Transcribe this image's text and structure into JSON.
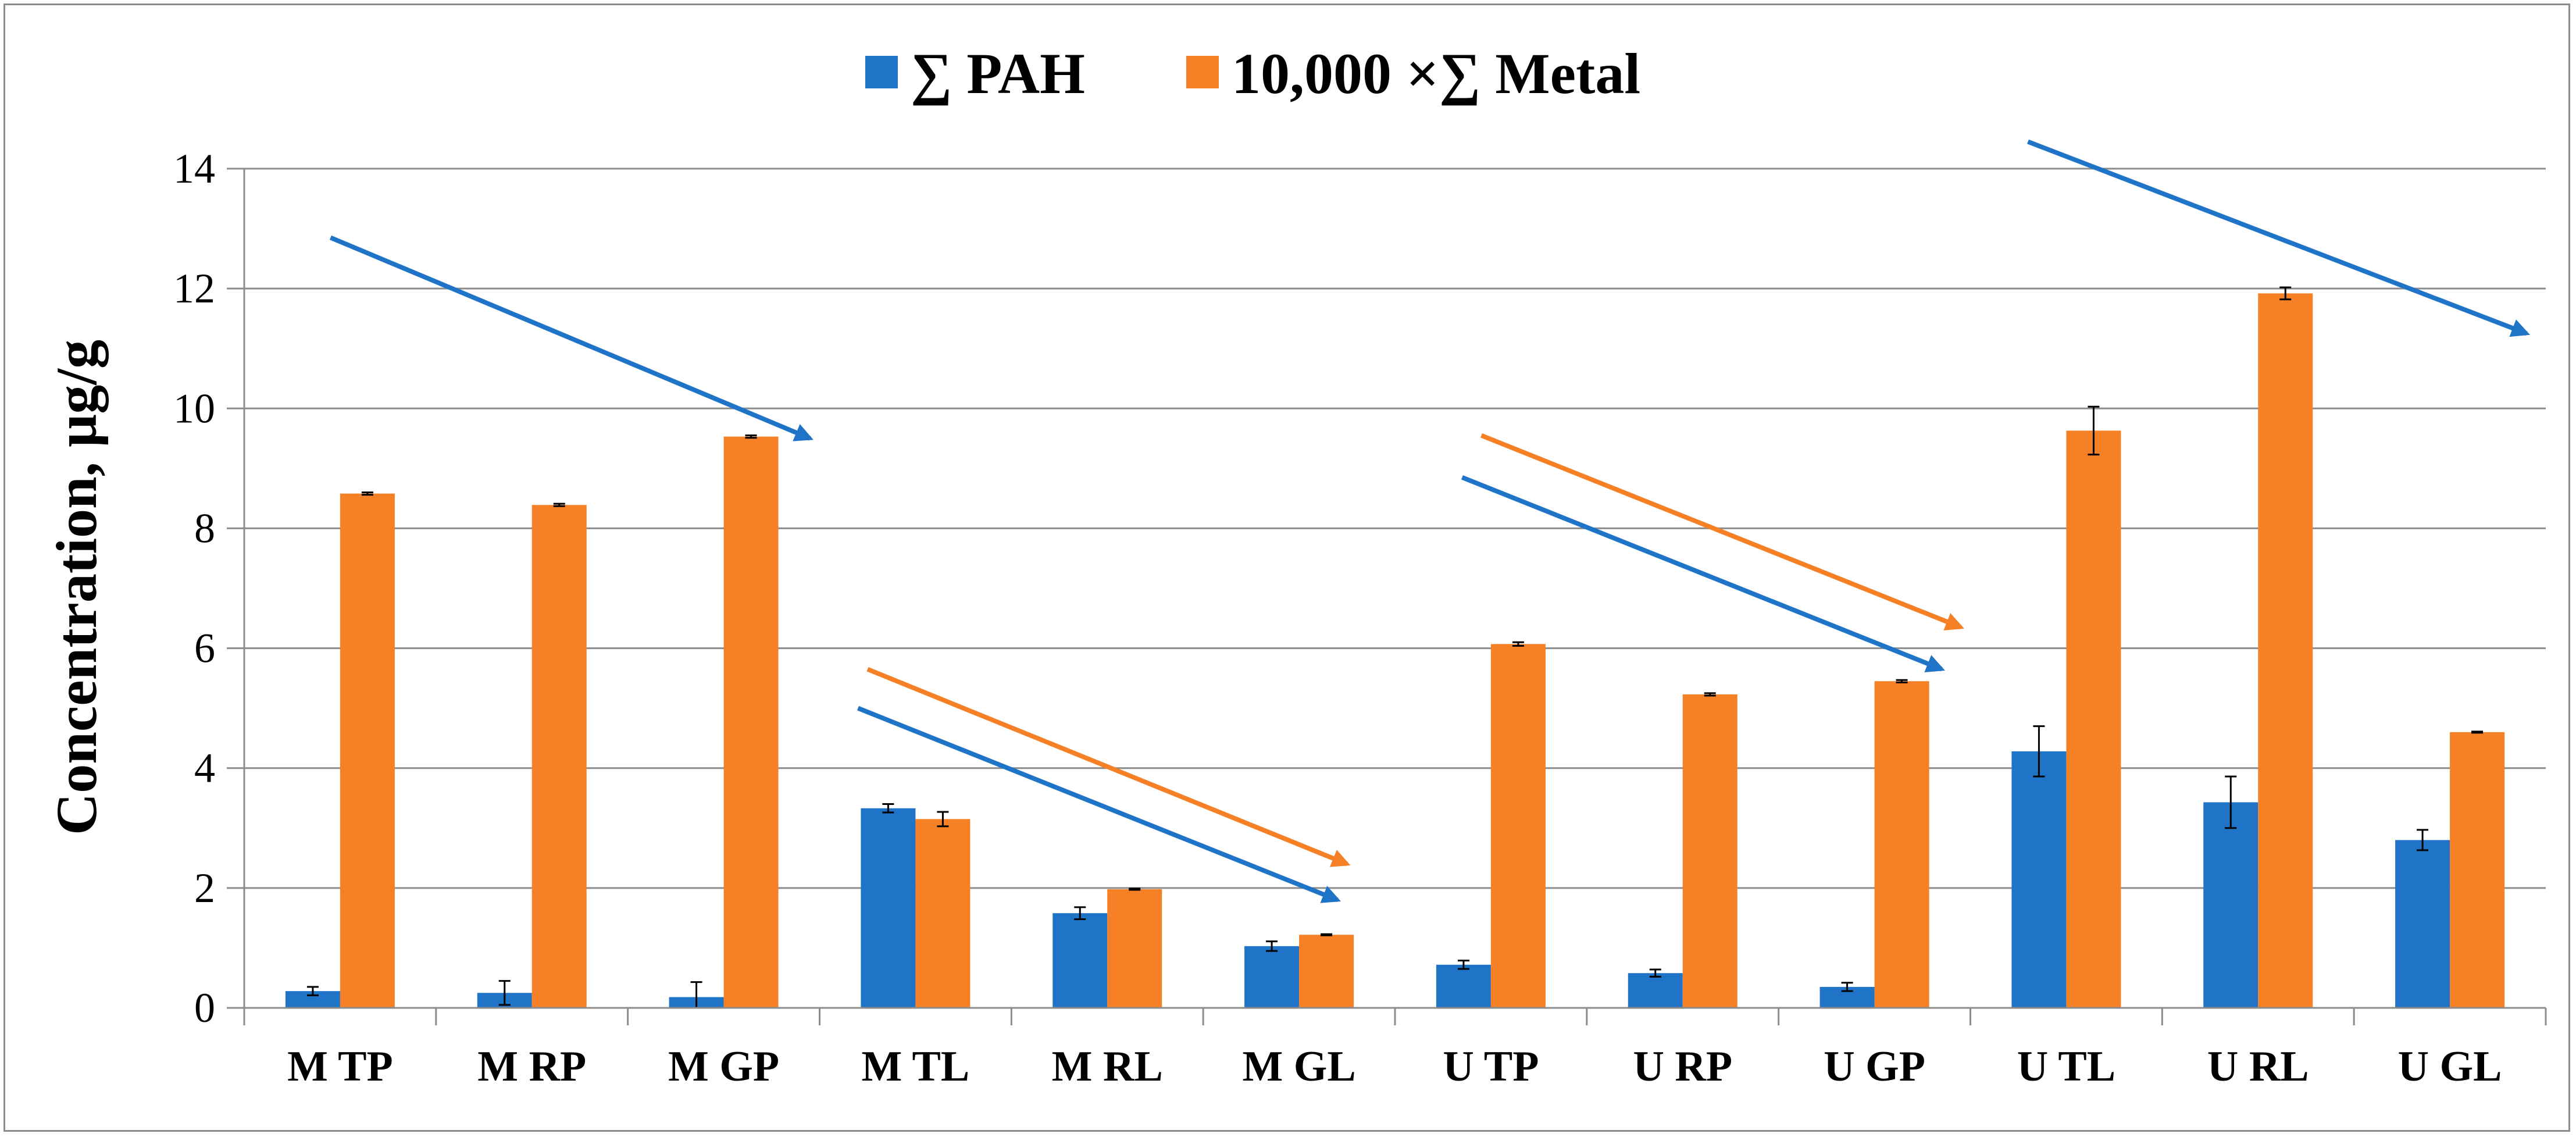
{
  "chart_data": {
    "type": "bar",
    "title": "",
    "xlabel": "",
    "ylabel": "Concentration, µg/g",
    "ylim": [
      0,
      14
    ],
    "yticks": [
      0,
      2,
      4,
      6,
      8,
      10,
      12,
      14
    ],
    "ytick_labels": [
      "0",
      "2",
      "4",
      "6",
      "8",
      "10",
      "12",
      "14"
    ],
    "grid": true,
    "legend_position": "top-center",
    "categories": [
      "M TP",
      "M RP",
      "M GP",
      "M TL",
      "M RL",
      "M GL",
      "U TP",
      "U RP",
      "U GP",
      "U TL",
      "U RL",
      "U GL"
    ],
    "series": [
      {
        "name": "∑ PAH",
        "color": "#1f74c8",
        "values": [
          0.28,
          0.25,
          0.18,
          3.33,
          1.58,
          1.03,
          0.72,
          0.58,
          0.35,
          4.28,
          3.43,
          2.8
        ],
        "errors": [
          0.07,
          0.2,
          0.25,
          0.07,
          0.1,
          0.08,
          0.07,
          0.06,
          0.07,
          0.42,
          0.43,
          0.17
        ]
      },
      {
        "name": "10,000 ×∑ Metal",
        "color": "#f58025",
        "values": [
          8.58,
          8.39,
          9.53,
          3.15,
          1.98,
          1.22,
          6.07,
          5.23,
          5.45,
          9.63,
          11.92,
          4.6
        ],
        "errors": [
          0.02,
          0.02,
          0.02,
          0.12,
          0.01,
          0.01,
          0.03,
          0.02,
          0.02,
          0.4,
          0.1,
          0.01
        ]
      }
    ],
    "annotations": [
      {
        "type": "arrow",
        "color": "#1f74c8",
        "from": {
          "x": 0.45,
          "y": 12.85
        },
        "to": {
          "x": 2.95,
          "y": 9.5
        }
      },
      {
        "type": "arrow",
        "color": "#f58025",
        "from": {
          "x": 3.25,
          "y": 5.65
        },
        "to": {
          "x": 5.75,
          "y": 2.4
        }
      },
      {
        "type": "arrow",
        "color": "#1f74c8",
        "from": {
          "x": 3.2,
          "y": 5.0
        },
        "to": {
          "x": 5.7,
          "y": 1.8
        }
      },
      {
        "type": "arrow",
        "color": "#f58025",
        "from": {
          "x": 6.45,
          "y": 9.55
        },
        "to": {
          "x": 8.95,
          "y": 6.35
        }
      },
      {
        "type": "arrow",
        "color": "#1f74c8",
        "from": {
          "x": 6.35,
          "y": 8.85
        },
        "to": {
          "x": 8.85,
          "y": 5.65
        }
      },
      {
        "type": "arrow",
        "color": "#1f74c8",
        "from": {
          "x": 9.3,
          "y": 14.45
        },
        "to": {
          "x": 11.9,
          "y": 11.25
        }
      }
    ]
  }
}
